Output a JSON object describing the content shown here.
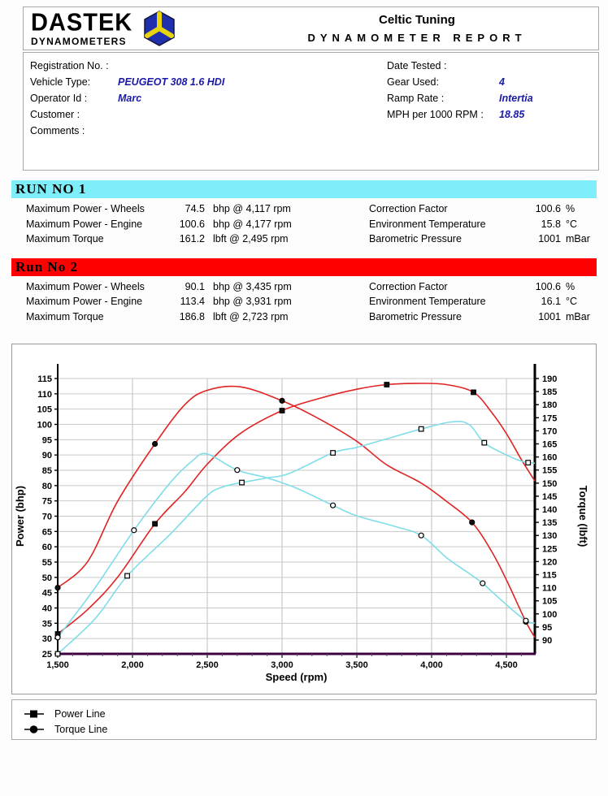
{
  "header": {
    "logo_title": "DASTEK",
    "logo_subtitle": "DYNAMOMETERS",
    "company": "Celtic Tuning",
    "report_title": "DYNAMOMETER REPORT"
  },
  "info": {
    "left": [
      {
        "label": "Registration No. :",
        "value": ""
      },
      {
        "label": "Vehicle Type:",
        "value": "PEUGEOT 308 1.6 HDI"
      },
      {
        "label": "Operator Id :",
        "value": "Marc"
      },
      {
        "label": "Customer :",
        "value": ""
      },
      {
        "label": "Comments :",
        "value": ""
      }
    ],
    "right": [
      {
        "label": "Date Tested :",
        "value": ""
      },
      {
        "label": "Gear Used:",
        "value": "4"
      },
      {
        "label": "Ramp Rate :",
        "value": "Intertia"
      },
      {
        "label": "MPH per 1000 RPM :",
        "value": "18.85"
      }
    ]
  },
  "runs": [
    {
      "title": "RUN NO 1",
      "band_color": "#7deefa",
      "metrics": [
        {
          "label": "Maximum Power - Wheels",
          "value": "74.5",
          "unit": "bhp @ 4,117 rpm"
        },
        {
          "label": "Maximum Power - Engine",
          "value": "100.6",
          "unit": "bhp @ 4,177 rpm"
        },
        {
          "label": "Maximum Torque",
          "value": "161.2",
          "unit": "lbft @ 2,495 rpm"
        }
      ],
      "environment": [
        {
          "label": "Correction Factor",
          "value": "100.6",
          "unit": "%"
        },
        {
          "label": "Environment Temperature",
          "value": "15.8",
          "unit": "°C"
        },
        {
          "label": "Barometric Pressure",
          "value": "1001",
          "unit": "mBar"
        }
      ]
    },
    {
      "title": "Run No 2",
      "band_color": "#fe0000",
      "metrics": [
        {
          "label": "Maximum Power - Wheels",
          "value": "90.1",
          "unit": "bhp @ 3,435 rpm"
        },
        {
          "label": "Maximum Power - Engine",
          "value": "113.4",
          "unit": "bhp @ 3,931 rpm"
        },
        {
          "label": "Maximum Torque",
          "value": "186.8",
          "unit": "lbft @ 2,723 rpm"
        }
      ],
      "environment": [
        {
          "label": "Correction Factor",
          "value": "100.6",
          "unit": "%"
        },
        {
          "label": "Environment Temperature",
          "value": "16.1",
          "unit": "°C"
        },
        {
          "label": "Barometric Pressure",
          "value": "1001",
          "unit": "mBar"
        }
      ]
    }
  ],
  "chart_data": {
    "type": "line",
    "xlabel": "Speed (rpm)",
    "ylabel_left": "Power (bhp)",
    "ylabel_right": "Torque (lbft)",
    "xlim": [
      1500,
      4690
    ],
    "x_ticks": [
      1500,
      2000,
      2500,
      3000,
      3500,
      4000,
      4500
    ],
    "x_tick_labels": [
      "1,500",
      "2,000",
      "2,500",
      "3,000",
      "3,500",
      "4,000",
      "4,500"
    ],
    "x_minor_step": 100,
    "ylim_left": [
      25,
      115
    ],
    "ytick_step_left": 5,
    "ylim_right": [
      90,
      190
    ],
    "ytick_step_right": 5,
    "grid": true,
    "colors": {
      "run1": "#7fdde8",
      "run2": "#e02424",
      "grid": "#c9c9c9",
      "bottom_axis": "#3d0042"
    },
    "series": [
      {
        "name": "Run 2 Power Line",
        "axis": "left",
        "color": "#e02424",
        "marker": "square",
        "marker_filled": true,
        "points": [
          [
            1500,
            31.5
          ],
          [
            1700,
            39.5
          ],
          [
            1900,
            50
          ],
          [
            2150,
            67.5
          ],
          [
            2350,
            78
          ],
          [
            2500,
            87
          ],
          [
            2720,
            97
          ],
          [
            3000,
            104.5
          ],
          [
            3250,
            108.5
          ],
          [
            3500,
            111.5
          ],
          [
            3700,
            113
          ],
          [
            3931,
            113.4
          ],
          [
            4100,
            113
          ],
          [
            4280,
            110.5
          ],
          [
            4400,
            104
          ],
          [
            4500,
            97
          ],
          [
            4600,
            88.5
          ],
          [
            4690,
            81.5
          ]
        ],
        "markers": [
          [
            1500,
            31.5
          ],
          [
            2150,
            67.5
          ],
          [
            3000,
            104.5
          ],
          [
            3700,
            113
          ],
          [
            4280,
            110.5
          ]
        ]
      },
      {
        "name": "Run 2 Torque Line",
        "axis": "right",
        "color": "#e02424",
        "marker": "circle",
        "marker_filled": true,
        "points": [
          [
            1500,
            110
          ],
          [
            1700,
            120
          ],
          [
            1900,
            143
          ],
          [
            2150,
            165
          ],
          [
            2350,
            180
          ],
          [
            2500,
            185.5
          ],
          [
            2723,
            186.8
          ],
          [
            3000,
            181.5
          ],
          [
            3250,
            174.5
          ],
          [
            3500,
            166
          ],
          [
            3700,
            157
          ],
          [
            3931,
            150
          ],
          [
            4100,
            143
          ],
          [
            4270,
            135
          ],
          [
            4400,
            124
          ],
          [
            4500,
            113
          ],
          [
            4630,
            97
          ],
          [
            4690,
            91
          ]
        ],
        "markers": [
          [
            1500,
            110
          ],
          [
            2150,
            165
          ],
          [
            3000,
            181.5
          ],
          [
            4270,
            135
          ],
          [
            4630,
            97
          ]
        ]
      },
      {
        "name": "Run 1 Power Line",
        "axis": "left",
        "color": "#7fdde8",
        "marker": "square",
        "marker_filled": false,
        "points": [
          [
            1500,
            25
          ],
          [
            1750,
            36.5
          ],
          [
            1965,
            50.5
          ],
          [
            2250,
            64
          ],
          [
            2495,
            76.5
          ],
          [
            2600,
            79.5
          ],
          [
            2731,
            81
          ],
          [
            2900,
            82.5
          ],
          [
            3050,
            84
          ],
          [
            3340,
            90.7
          ],
          [
            3500,
            92.5
          ],
          [
            3750,
            96
          ],
          [
            3930,
            98.5
          ],
          [
            4130,
            100.8
          ],
          [
            4250,
            100
          ],
          [
            4352,
            94
          ],
          [
            4500,
            90
          ],
          [
            4600,
            88
          ],
          [
            4690,
            87.3
          ]
        ],
        "markers": [
          [
            1500,
            25
          ],
          [
            1965,
            50.5
          ],
          [
            2731,
            81
          ],
          [
            3340,
            90.7
          ],
          [
            3930,
            98.5
          ],
          [
            4352,
            94
          ],
          [
            4645,
            87.5
          ]
        ]
      },
      {
        "name": "Run 1 Torque Line",
        "axis": "right",
        "color": "#7fdde8",
        "marker": "circle",
        "marker_filled": false,
        "points": [
          [
            1500,
            91
          ],
          [
            1750,
            110
          ],
          [
            2010,
            132
          ],
          [
            2250,
            150
          ],
          [
            2400,
            158.5
          ],
          [
            2495,
            161.2
          ],
          [
            2700,
            155
          ],
          [
            2900,
            152
          ],
          [
            3100,
            148
          ],
          [
            3340,
            141.5
          ],
          [
            3500,
            137.5
          ],
          [
            3750,
            133.5
          ],
          [
            3930,
            130
          ],
          [
            4100,
            121.5
          ],
          [
            4250,
            115.5
          ],
          [
            4341,
            111.7
          ],
          [
            4500,
            103.5
          ],
          [
            4630,
            97.4
          ],
          [
            4690,
            96.5
          ]
        ],
        "markers": [
          [
            1500,
            91
          ],
          [
            2010,
            132
          ],
          [
            2700,
            155
          ],
          [
            3340,
            141.5
          ],
          [
            3930,
            130
          ],
          [
            4341,
            111.7
          ],
          [
            4630,
            97.4
          ]
        ]
      }
    ]
  },
  "legend": {
    "items": [
      {
        "marker": "square",
        "label": "Power Line"
      },
      {
        "marker": "circle",
        "label": "Torque Line"
      }
    ]
  }
}
